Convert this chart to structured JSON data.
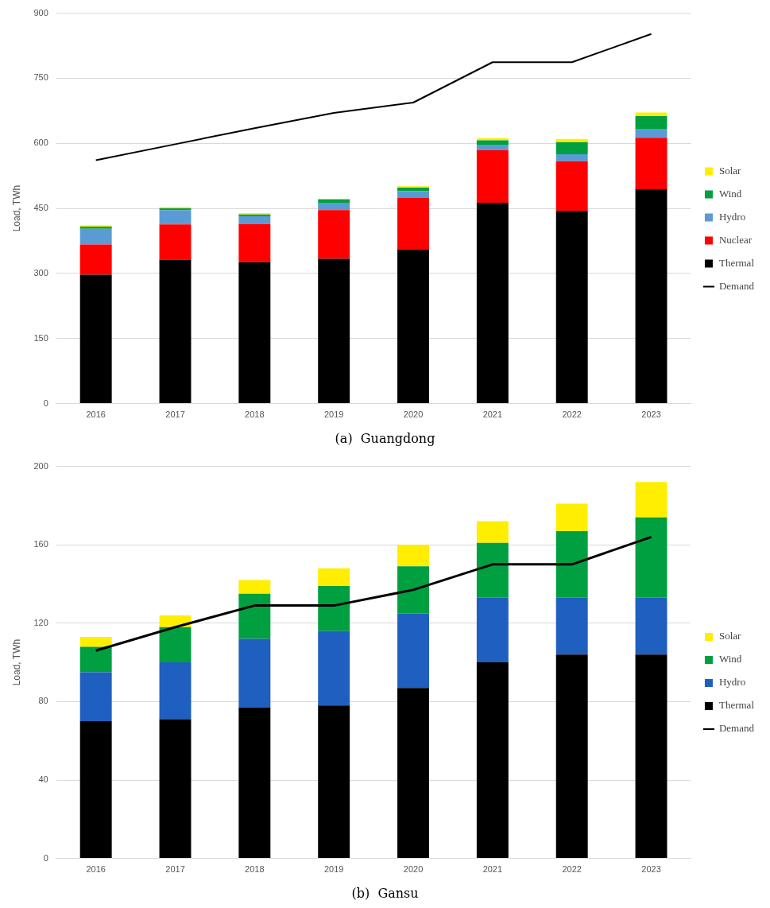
{
  "chart_data": [
    {
      "type": "bar",
      "stacked": true,
      "title": "(a)  Guangdong",
      "ylabel": "Load, TWh",
      "categories": [
        "2016",
        "2017",
        "2018",
        "2019",
        "2020",
        "2021",
        "2022",
        "2023"
      ],
      "ylim": [
        0,
        900
      ],
      "yticks": [
        0,
        150,
        300,
        450,
        600,
        750,
        900
      ],
      "grid": "y",
      "legend": "right",
      "series": [
        {
          "name": "Thermal",
          "color": "#000000",
          "values": [
            297,
            332,
            326,
            334,
            356,
            463,
            444,
            494
          ]
        },
        {
          "name": "Nuclear",
          "color": "#ff0000",
          "values": [
            70,
            81,
            88,
            112,
            119,
            121,
            115,
            119
          ]
        },
        {
          "name": "Hydro",
          "color": "#5b9bd5",
          "values": [
            36,
            33,
            18,
            17,
            15,
            13,
            16,
            19
          ]
        },
        {
          "name": "Wind",
          "color": "#00a040",
          "values": [
            5,
            4,
            4,
            8,
            8,
            10,
            28,
            31
          ]
        },
        {
          "name": "Solar",
          "color": "#ffee00",
          "values": [
            3,
            3,
            3,
            1,
            3,
            5,
            7,
            8
          ]
        },
        {
          "name": "Demand",
          "type": "line",
          "color": "#000000",
          "values": [
            561,
            598,
            635,
            670,
            694,
            787,
            787,
            852
          ]
        }
      ]
    },
    {
      "type": "bar",
      "stacked": true,
      "title": "(b)  Gansu",
      "ylabel": "Load, TWh",
      "categories": [
        "2016",
        "2017",
        "2018",
        "2019",
        "2020",
        "2021",
        "2022",
        "2023"
      ],
      "ylim": [
        0,
        200
      ],
      "yticks": [
        0,
        40,
        80,
        120,
        160,
        200
      ],
      "grid": "y",
      "legend": "right",
      "series": [
        {
          "name": "Thermal",
          "color": "#000000",
          "values": [
            70,
            71,
            77,
            78,
            87,
            100,
            104,
            104
          ]
        },
        {
          "name": "Hydro",
          "color": "#1f5fbf",
          "values": [
            25,
            29,
            35,
            38,
            38,
            33,
            29,
            29
          ]
        },
        {
          "name": "Wind",
          "color": "#00a040",
          "values": [
            13,
            18,
            23,
            23,
            24,
            28,
            34,
            41
          ]
        },
        {
          "name": "Solar",
          "color": "#ffee00",
          "values": [
            5,
            6,
            7,
            9,
            11,
            11,
            14,
            18
          ]
        },
        {
          "name": "Demand",
          "type": "line",
          "color": "#000000",
          "values": [
            106,
            118,
            129,
            129,
            137,
            150,
            150,
            164
          ]
        }
      ]
    }
  ]
}
